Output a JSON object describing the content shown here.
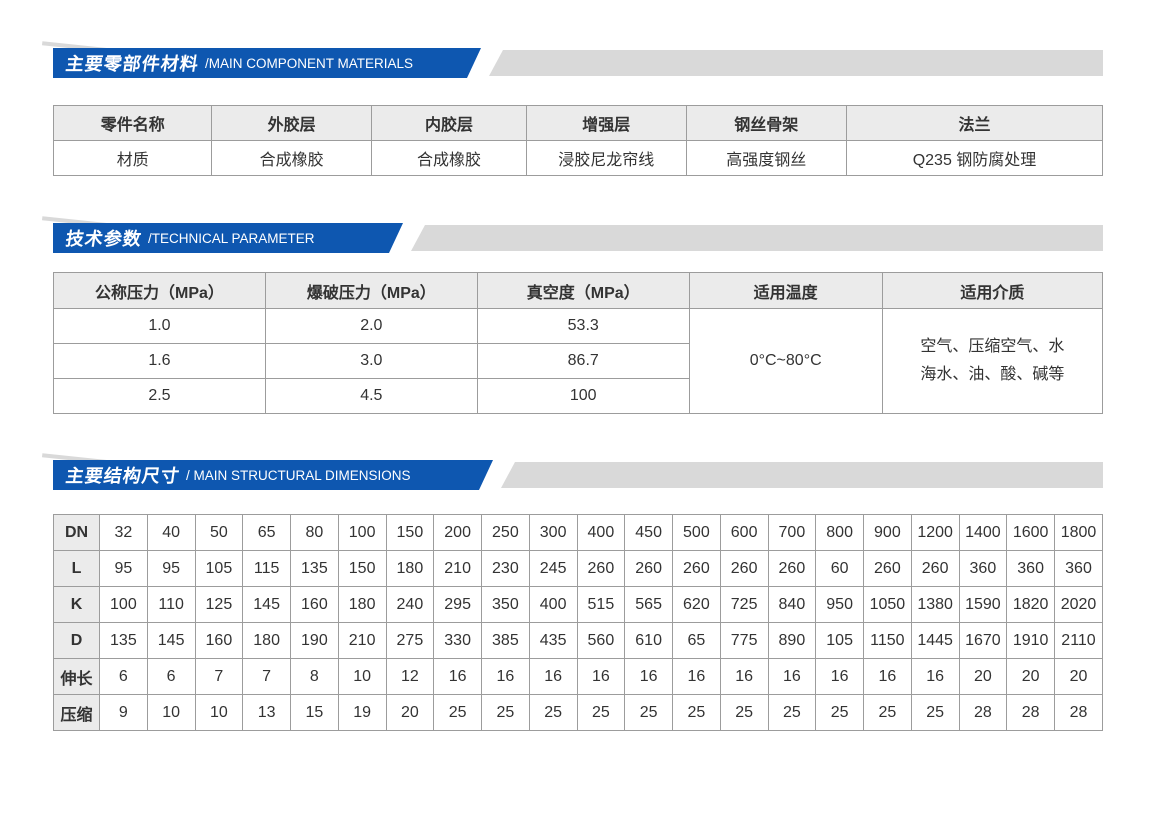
{
  "colors": {
    "banner_blue": "#0e57b0",
    "banner_gray": "#d9d9d9",
    "table_header_bg": "#ebebeb",
    "table_border": "#9c9c9c"
  },
  "sections": {
    "materials": {
      "banner": {
        "zh": "主要零部件材料",
        "en": "/MAIN COMPONENT MATERIALS"
      },
      "table": {
        "headers": [
          "零件名称",
          "外胶层",
          "内胶层",
          "增强层",
          "钢丝骨架",
          "法兰"
        ],
        "rows": [
          [
            "材质",
            "合成橡胶",
            "合成橡胶",
            "浸胶尼龙帘线",
            "高强度钢丝",
            "Q235 钢防腐处理"
          ]
        ]
      }
    },
    "technical": {
      "banner": {
        "zh": "技术参数",
        "en": "/TECHNICAL PARAMETER"
      },
      "table": {
        "headers": [
          "公称压力（MPa）",
          "爆破压力（MPa）",
          "真空度（MPa）",
          "适用温度",
          "适用介质"
        ],
        "pressure_rows": [
          [
            "1.0",
            "2.0",
            "53.3"
          ],
          [
            "1.6",
            "3.0",
            "86.7"
          ],
          [
            "2.5",
            "4.5",
            "100"
          ]
        ],
        "temperature": "0°C~80°C",
        "medium": "空气、压缩空气、水\n海水、油、酸、碱等"
      }
    },
    "dimensions": {
      "banner": {
        "zh": "主要结构尺寸",
        "en": "/ MAIN STRUCTURAL DIMENSIONS"
      },
      "table": {
        "rows": [
          {
            "label": "DN",
            "values": [
              "32",
              "40",
              "50",
              "65",
              "80",
              "100",
              "150",
              "200",
              "250",
              "300",
              "400",
              "450",
              "500",
              "600",
              "700",
              "800",
              "900",
              "1200",
              "1400",
              "1600",
              "1800"
            ]
          },
          {
            "label": "L",
            "values": [
              "95",
              "95",
              "105",
              "115",
              "135",
              "150",
              "180",
              "210",
              "230",
              "245",
              "260",
              "260",
              "260",
              "260",
              "260",
              "60",
              "260",
              "260",
              "360",
              "360",
              "360"
            ]
          },
          {
            "label": "K",
            "values": [
              "100",
              "110",
              "125",
              "145",
              "160",
              "180",
              "240",
              "295",
              "350",
              "400",
              "515",
              "565",
              "620",
              "725",
              "840",
              "950",
              "1050",
              "1380",
              "1590",
              "1820",
              "2020"
            ]
          },
          {
            "label": "D",
            "values": [
              "135",
              "145",
              "160",
              "180",
              "190",
              "210",
              "275",
              "330",
              "385",
              "435",
              "560",
              "610",
              "65",
              "775",
              "890",
              "105",
              "1150",
              "1445",
              "1670",
              "1910",
              "2110"
            ]
          },
          {
            "label": "伸长",
            "values": [
              "6",
              "6",
              "7",
              "7",
              "8",
              "10",
              "12",
              "16",
              "16",
              "16",
              "16",
              "16",
              "16",
              "16",
              "16",
              "16",
              "16",
              "16",
              "20",
              "20",
              "20"
            ]
          },
          {
            "label": "压缩",
            "values": [
              "9",
              "10",
              "10",
              "13",
              "15",
              "19",
              "20",
              "25",
              "25",
              "25",
              "25",
              "25",
              "25",
              "25",
              "25",
              "25",
              "25",
              "25",
              "28",
              "28",
              "28"
            ]
          }
        ]
      }
    }
  }
}
